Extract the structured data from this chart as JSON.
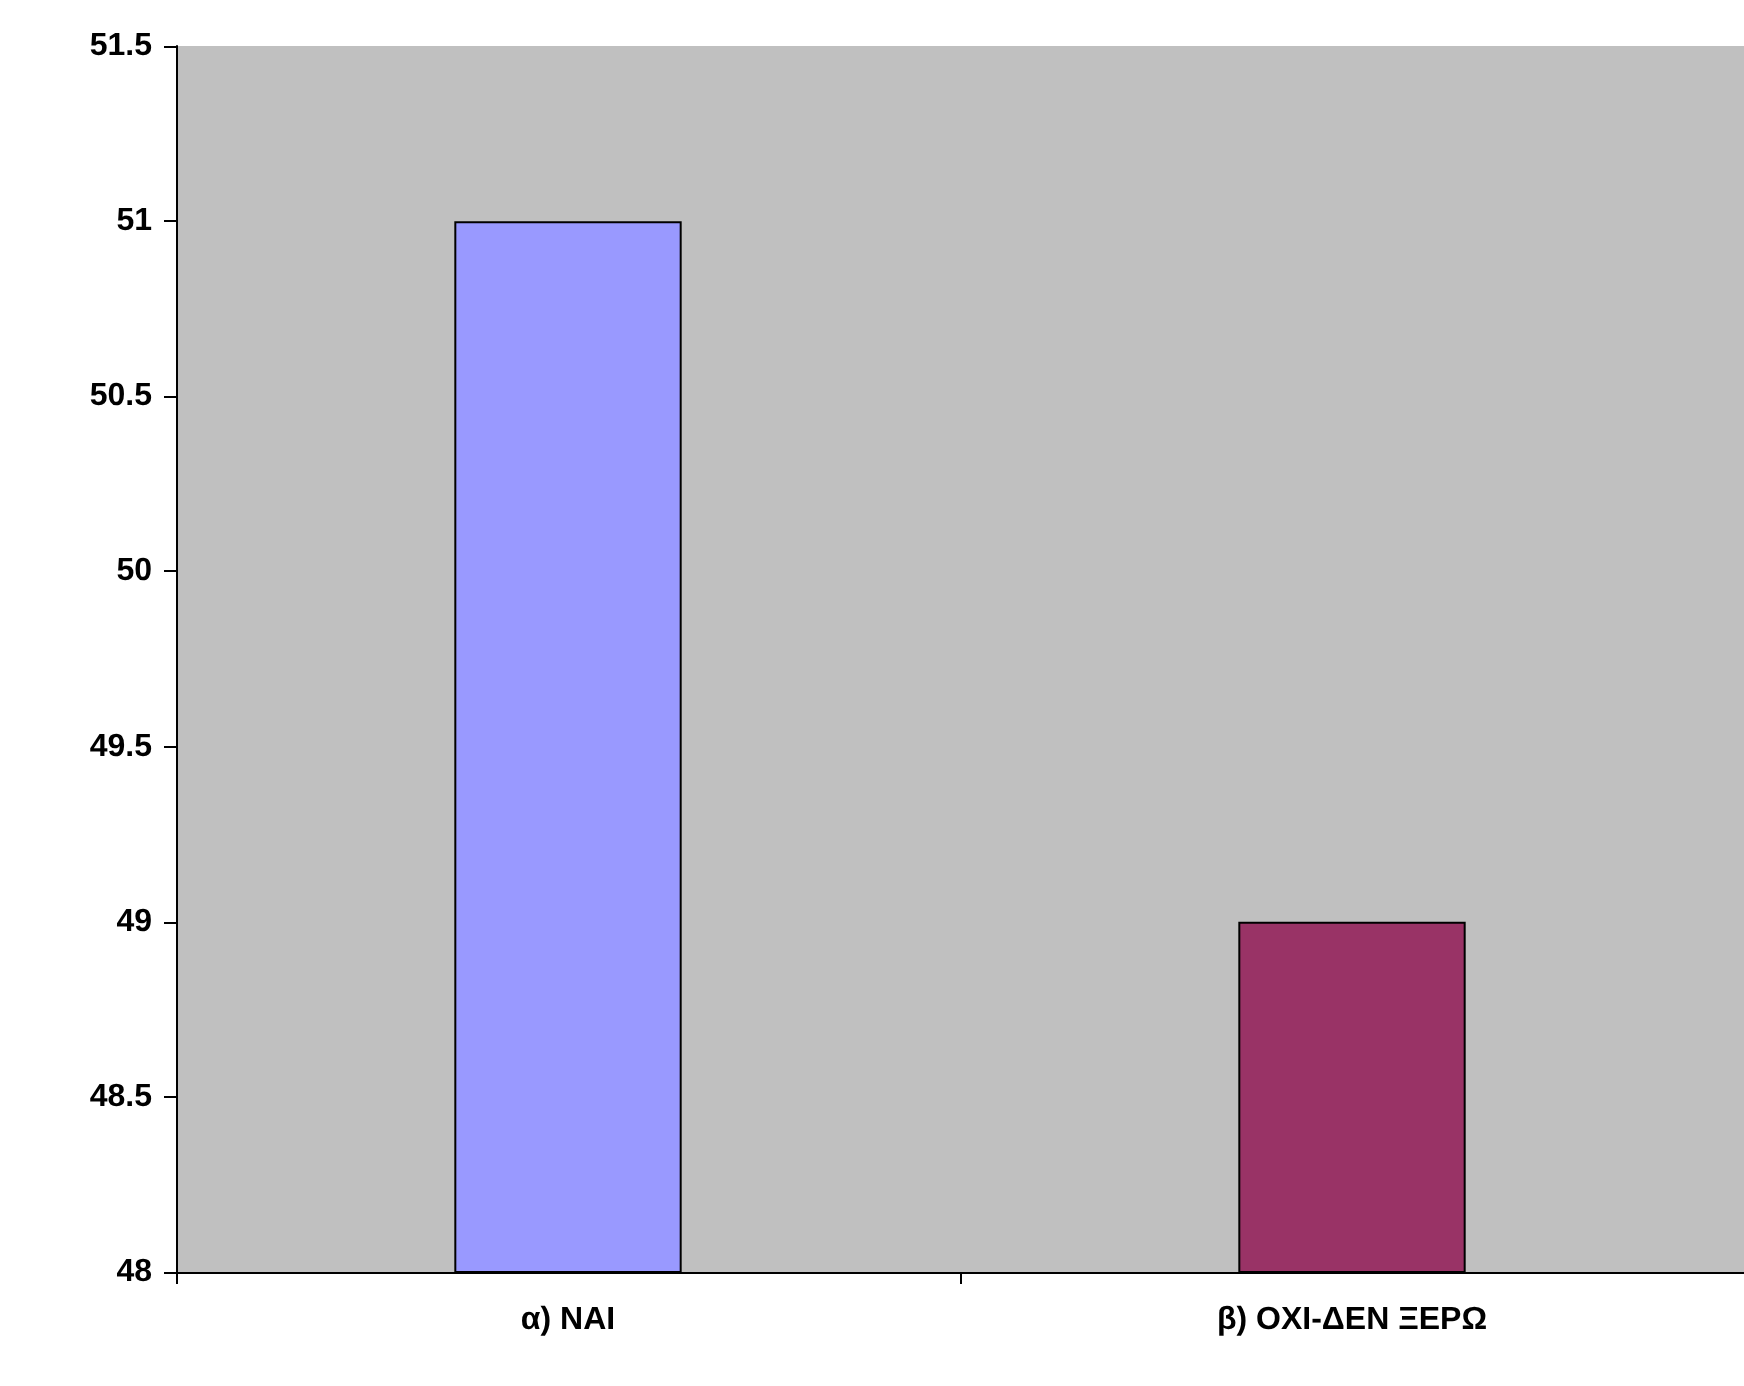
{
  "chart_data": {
    "type": "bar",
    "categories": [
      "α) ΝΑΙ",
      "β) ΟΧΙ-ΔΕΝ ΞΕΡΩ"
    ],
    "values": [
      51,
      49
    ],
    "colors": [
      "#9999ff",
      "#993366"
    ],
    "ylim": [
      48,
      51.5
    ],
    "yticks": [
      48,
      48.5,
      49,
      49.5,
      50,
      50.5,
      51,
      51.5
    ],
    "grid": false
  }
}
